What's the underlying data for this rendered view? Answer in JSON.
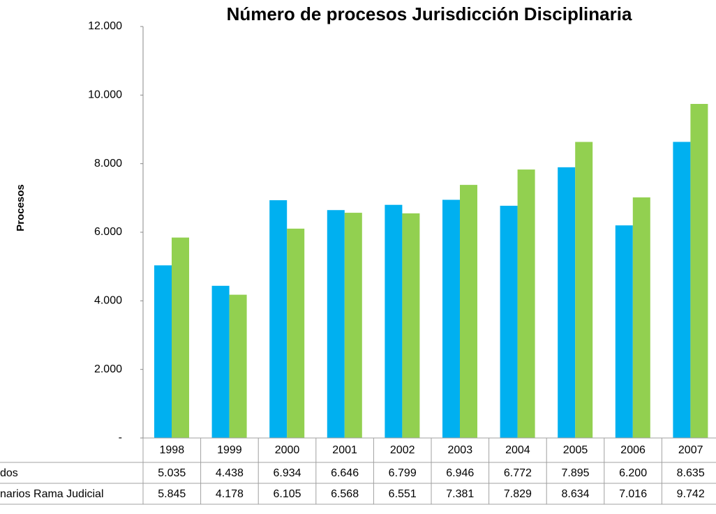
{
  "chart_data": {
    "type": "bar",
    "title": "Número de procesos Jurisdicción Disciplinaria",
    "y_axis_label": "Procesos",
    "categories": [
      "1998",
      "1999",
      "2000",
      "2001",
      "2002",
      "2003",
      "2004",
      "2005",
      "2006",
      "2007"
    ],
    "series": [
      {
        "name": "dos",
        "color": "#00b0f0",
        "values": [
          5035,
          4438,
          6934,
          6646,
          6799,
          6946,
          6772,
          7895,
          6200,
          8635
        ],
        "value_labels": [
          "5.035",
          "4.438",
          "6.934",
          "6.646",
          "6.799",
          "6.946",
          "6.772",
          "7.895",
          "6.200",
          "8.635"
        ]
      },
      {
        "name": "narios Rama Judicial",
        "color": "#92d050",
        "values": [
          5845,
          4178,
          6105,
          6568,
          6551,
          7381,
          7829,
          8634,
          7016,
          9742
        ],
        "value_labels": [
          "5.845",
          "4.178",
          "6.105",
          "6.568",
          "6.551",
          "7.381",
          "7.829",
          "8.634",
          "7.016",
          "9.742"
        ]
      }
    ],
    "ylim": [
      0,
      12000
    ],
    "yticks": [
      {
        "value": 0,
        "label": "-"
      },
      {
        "value": 2000,
        "label": "2.000"
      },
      {
        "value": 4000,
        "label": "4.000"
      },
      {
        "value": 6000,
        "label": "6.000"
      },
      {
        "value": 8000,
        "label": "8.000"
      },
      {
        "value": 10000,
        "label": "10.000"
      },
      {
        "value": 12000,
        "label": "12.000"
      }
    ],
    "grid": false,
    "data_table": true
  }
}
